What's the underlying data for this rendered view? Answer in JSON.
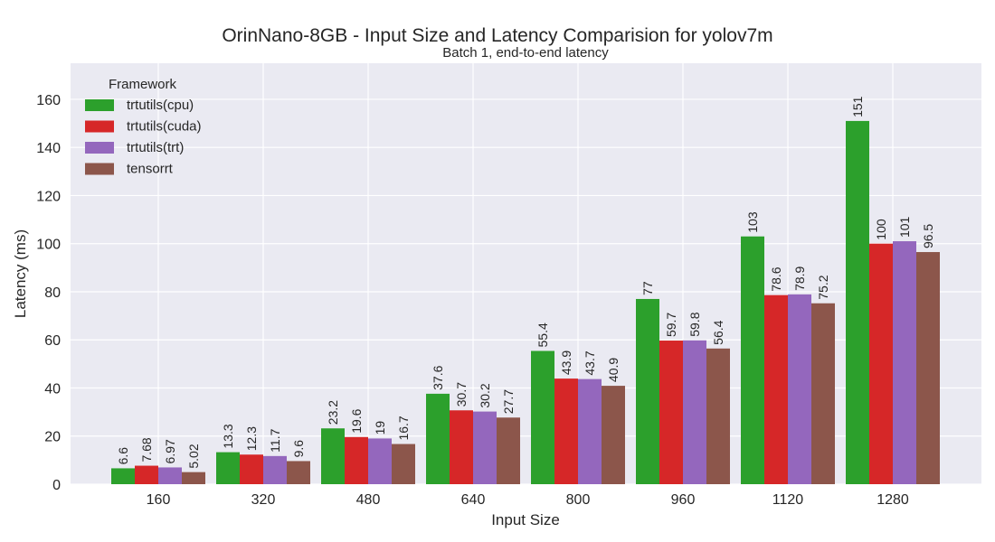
{
  "chart_data": {
    "type": "bar",
    "title": "OrinNano-8GB - Input Size and Latency Comparision for yolov7m",
    "subtitle": "Batch 1, end-to-end latency",
    "xlabel": "Input Size",
    "ylabel": "Latency (ms)",
    "categories": [
      "160",
      "320",
      "480",
      "640",
      "800",
      "960",
      "1120",
      "1280"
    ],
    "ylim": [
      0,
      175
    ],
    "yticks": [
      0,
      20,
      40,
      60,
      80,
      100,
      120,
      140,
      160
    ],
    "grid": true,
    "legend": {
      "title": "Framework",
      "placement": "top-left"
    },
    "series": [
      {
        "name": "trtutils(cpu)",
        "color": "#2ca02c",
        "values": [
          6.6,
          13.3,
          23.2,
          37.6,
          55.4,
          77,
          103,
          151
        ],
        "labels": [
          "6.6",
          "13.3",
          "23.2",
          "37.6",
          "55.4",
          "77",
          "103",
          "151"
        ]
      },
      {
        "name": "trtutils(cuda)",
        "color": "#d62728",
        "values": [
          7.68,
          12.3,
          19.6,
          30.7,
          43.9,
          59.7,
          78.6,
          100
        ],
        "labels": [
          "7.68",
          "12.3",
          "19.6",
          "30.7",
          "43.9",
          "59.7",
          "78.6",
          "100"
        ]
      },
      {
        "name": "trtutils(trt)",
        "color": "#9467bd",
        "values": [
          6.97,
          11.7,
          19,
          30.2,
          43.7,
          59.8,
          78.9,
          101
        ],
        "labels": [
          "6.97",
          "11.7",
          "19",
          "30.2",
          "43.7",
          "59.8",
          "78.9",
          "101"
        ]
      },
      {
        "name": "tensorrt",
        "color": "#8c564b",
        "values": [
          5.02,
          9.6,
          16.7,
          27.7,
          40.9,
          56.4,
          75.2,
          96.5
        ],
        "labels": [
          "5.02",
          "9.6",
          "16.7",
          "27.7",
          "40.9",
          "56.4",
          "75.2",
          "96.5"
        ]
      }
    ]
  }
}
